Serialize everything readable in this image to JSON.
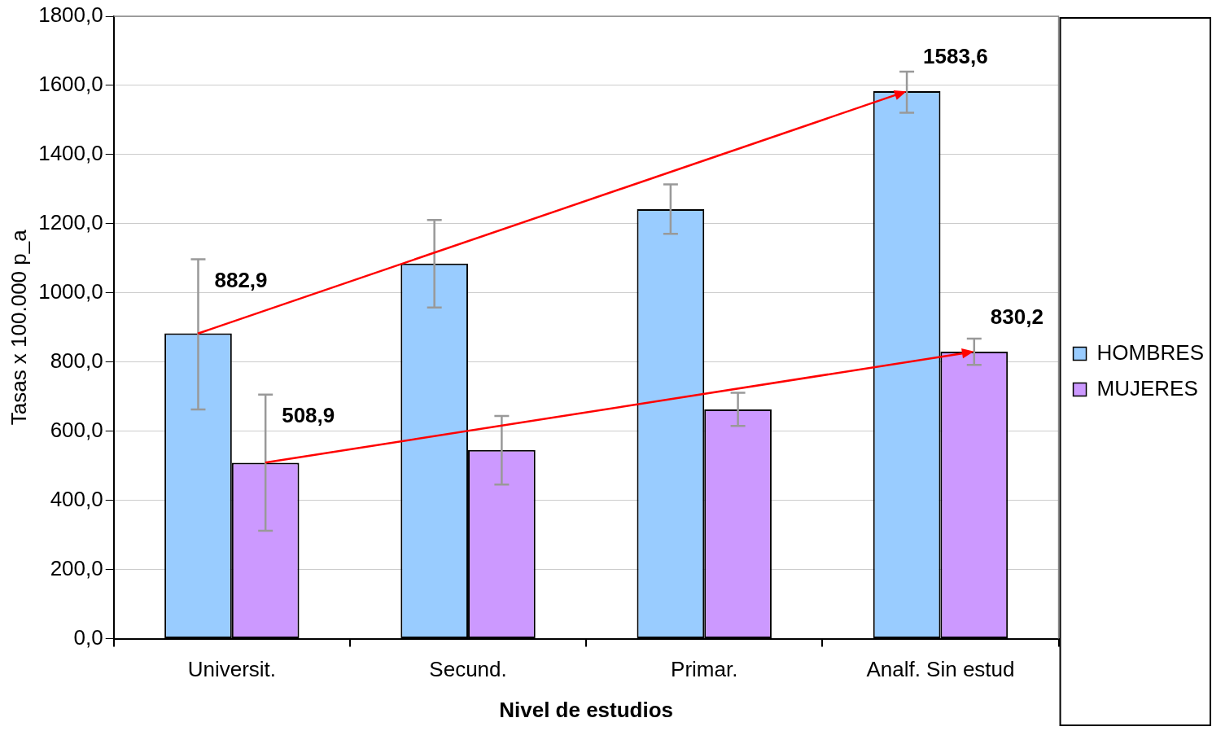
{
  "chart_data": {
    "type": "bar",
    "xlabel": "Nivel de estudios",
    "ylabel": "Tasas x 100.000 p_a",
    "categories": [
      "Universit.",
      "Secund.",
      "Primar.",
      "Analf. Sin estud"
    ],
    "series": [
      {
        "name": "HOMBRES",
        "color": "#99ccff",
        "values": [
          882.9,
          1085,
          1242,
          1583.6
        ],
        "errors": [
          [
            663,
            1097
          ],
          [
            958,
            1211
          ],
          [
            1171,
            1314
          ],
          [
            1521,
            1640
          ]
        ],
        "value_labels": [
          "882,9",
          null,
          null,
          "1583,6"
        ]
      },
      {
        "name": "MUJERES",
        "color": "#cc99ff",
        "values": [
          508.9,
          546,
          663,
          830.2
        ],
        "errors": [
          [
            312,
            706
          ],
          [
            446,
            644
          ],
          [
            615,
            711
          ],
          [
            792,
            868
          ]
        ],
        "value_labels": [
          "508,9",
          null,
          null,
          "830,2"
        ]
      }
    ],
    "ylim": [
      0,
      1800
    ],
    "yticks": [
      {
        "value": 0,
        "label": "0,0"
      },
      {
        "value": 200,
        "label": "200,0"
      },
      {
        "value": 400,
        "label": "400,0"
      },
      {
        "value": 600,
        "label": "600,0"
      },
      {
        "value": 800,
        "label": "800,0"
      },
      {
        "value": 1000,
        "label": "1000,0"
      },
      {
        "value": 1200,
        "label": "1200,0"
      },
      {
        "value": 1400,
        "label": "1400,0"
      },
      {
        "value": 1600,
        "label": "1600,0"
      },
      {
        "value": 1800,
        "label": "1800,0"
      }
    ],
    "grid": "y",
    "legend": "right"
  }
}
